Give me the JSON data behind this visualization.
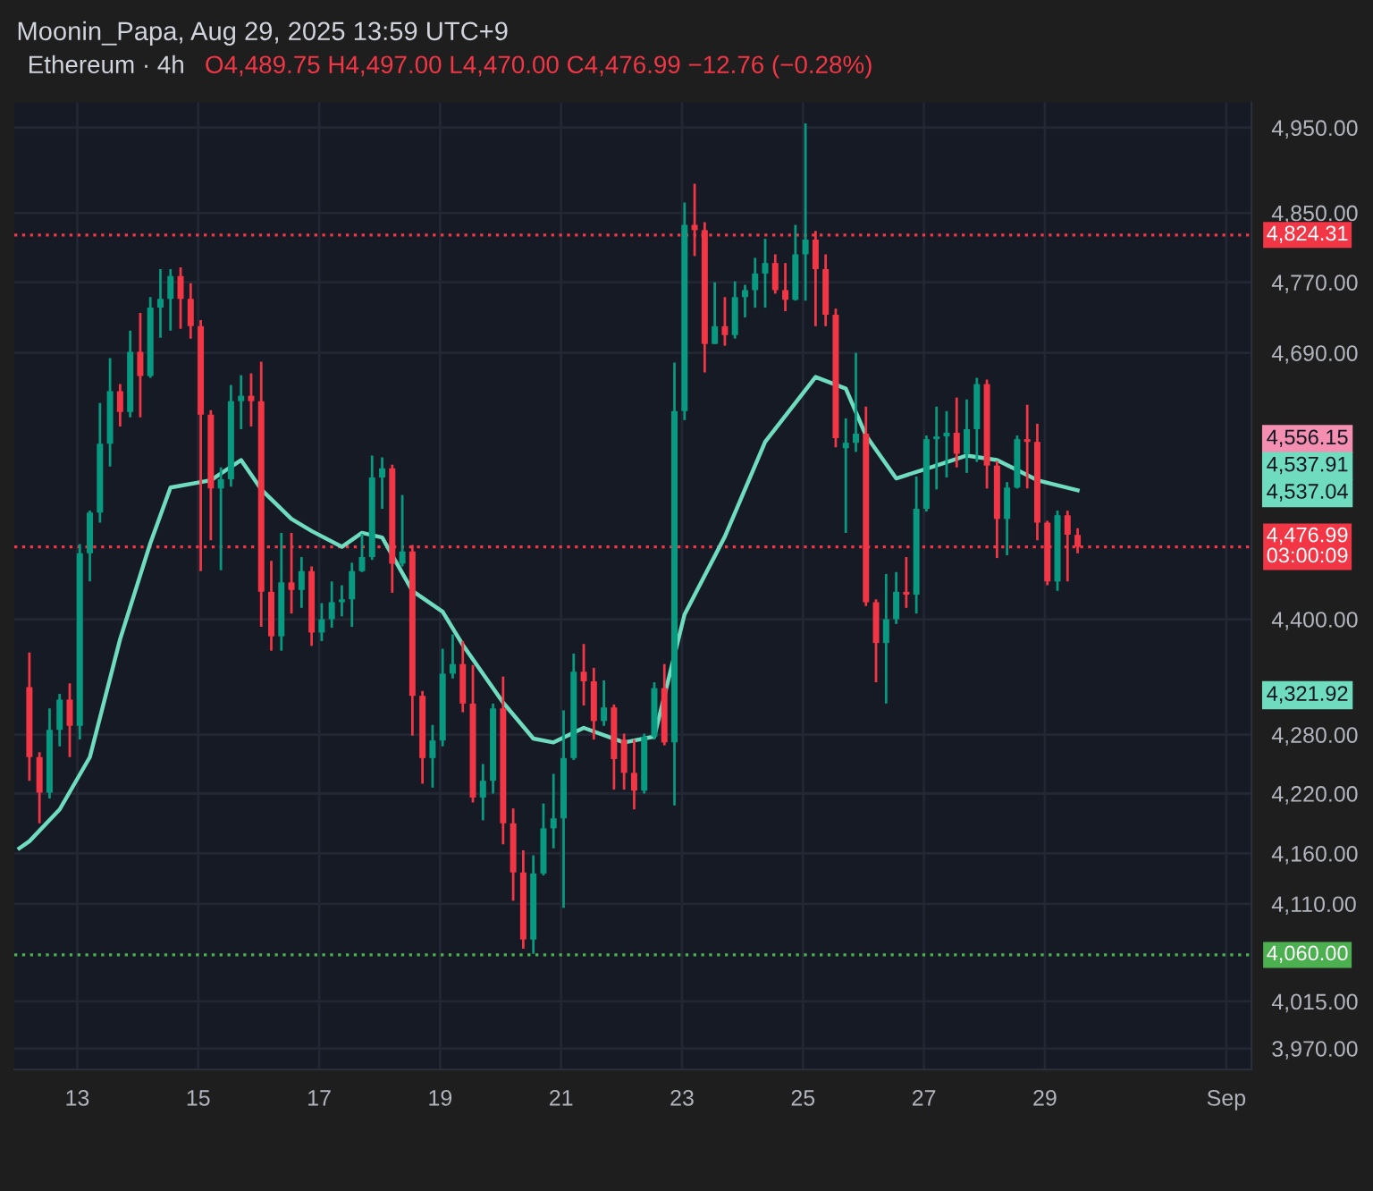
{
  "chart_data": {
    "type": "candlestick",
    "title": "Ethereum · 4h",
    "subtitle": "O4,489.75 H4,497.00 L4,470.00 C4,476.99 −12.76 (−0.28%)",
    "annotations": [
      "Moonin_Papa, Aug 29, 2025 13:59 UTC+9",
      "4,556.15",
      "4,537.91",
      "4,537.04",
      "4,321.92"
    ],
    "x": [
      "2025-08-12T05:00",
      "2025-08-12T09:00",
      "2025-08-12T13:00",
      "2025-08-12T17:00",
      "2025-08-12T21:00",
      "2025-08-13T01:00",
      "2025-08-13T05:00",
      "2025-08-13T09:00",
      "2025-08-13T13:00",
      "2025-08-13T17:00",
      "2025-08-13T21:00",
      "2025-08-14T01:00",
      "2025-08-14T05:00",
      "2025-08-14T09:00",
      "2025-08-14T13:00",
      "2025-08-14T17:00",
      "2025-08-14T21:00",
      "2025-08-15T01:00",
      "2025-08-15T05:00",
      "2025-08-15T09:00",
      "2025-08-15T13:00",
      "2025-08-15T17:00",
      "2025-08-15T21:00",
      "2025-08-16T01:00",
      "2025-08-16T05:00",
      "2025-08-16T09:00",
      "2025-08-16T13:00",
      "2025-08-16T17:00",
      "2025-08-16T21:00",
      "2025-08-17T01:00",
      "2025-08-17T05:00",
      "2025-08-17T09:00",
      "2025-08-17T13:00",
      "2025-08-17T17:00",
      "2025-08-17T21:00",
      "2025-08-18T01:00",
      "2025-08-18T05:00",
      "2025-08-18T09:00",
      "2025-08-18T13:00",
      "2025-08-18T17:00",
      "2025-08-18T21:00",
      "2025-08-19T01:00",
      "2025-08-19T05:00",
      "2025-08-19T09:00",
      "2025-08-19T13:00",
      "2025-08-19T17:00",
      "2025-08-19T21:00",
      "2025-08-20T01:00",
      "2025-08-20T05:00",
      "2025-08-20T09:00",
      "2025-08-20T13:00",
      "2025-08-20T17:00",
      "2025-08-20T21:00",
      "2025-08-21T01:00",
      "2025-08-21T05:00",
      "2025-08-21T09:00",
      "2025-08-21T13:00",
      "2025-08-21T17:00",
      "2025-08-21T21:00",
      "2025-08-22T01:00",
      "2025-08-22T05:00",
      "2025-08-22T09:00",
      "2025-08-22T13:00",
      "2025-08-22T17:00",
      "2025-08-22T21:00",
      "2025-08-23T01:00",
      "2025-08-23T05:00",
      "2025-08-23T09:00",
      "2025-08-23T13:00",
      "2025-08-23T17:00",
      "2025-08-23T21:00",
      "2025-08-24T01:00",
      "2025-08-24T05:00",
      "2025-08-24T09:00",
      "2025-08-24T13:00",
      "2025-08-24T17:00",
      "2025-08-24T21:00",
      "2025-08-25T01:00",
      "2025-08-25T05:00",
      "2025-08-25T09:00",
      "2025-08-25T13:00",
      "2025-08-25T17:00",
      "2025-08-25T21:00",
      "2025-08-26T01:00",
      "2025-08-26T05:00",
      "2025-08-26T09:00",
      "2025-08-26T13:00",
      "2025-08-26T17:00",
      "2025-08-26T21:00",
      "2025-08-27T01:00",
      "2025-08-27T05:00",
      "2025-08-27T09:00",
      "2025-08-27T13:00",
      "2025-08-27T17:00",
      "2025-08-27T21:00",
      "2025-08-28T01:00",
      "2025-08-28T05:00",
      "2025-08-28T09:00",
      "2025-08-28T13:00",
      "2025-08-28T17:00",
      "2025-08-28T21:00",
      "2025-08-29T01:00",
      "2025-08-29T05:00",
      "2025-08-29T09:00",
      "2025-08-29T13:00"
    ],
    "ohlc": [
      [
        4329,
        4365,
        4233,
        4257
      ],
      [
        4257,
        4262,
        4190,
        4221
      ],
      [
        4221,
        4307,
        4215,
        4285
      ],
      [
        4285,
        4322,
        4268,
        4316
      ],
      [
        4316,
        4333,
        4257,
        4289
      ],
      [
        4289,
        4480,
        4275,
        4470
      ],
      [
        4470,
        4516,
        4440,
        4514
      ],
      [
        4514,
        4634,
        4503,
        4589
      ],
      [
        4589,
        4684,
        4564,
        4647
      ],
      [
        4647,
        4655,
        4608,
        4624
      ],
      [
        4624,
        4715,
        4618,
        4691
      ],
      [
        4691,
        4735,
        4618,
        4664
      ],
      [
        4664,
        4753,
        4662,
        4741
      ],
      [
        4741,
        4785,
        4707,
        4751
      ],
      [
        4751,
        4785,
        4715,
        4777
      ],
      [
        4777,
        4787,
        4717,
        4751
      ],
      [
        4751,
        4769,
        4706,
        4720
      ],
      [
        4720,
        4727,
        4451,
        4621
      ],
      [
        4621,
        4626,
        4484,
        4540
      ],
      [
        4540,
        4563,
        4452,
        4550
      ],
      [
        4550,
        4654,
        4542,
        4636
      ],
      [
        4636,
        4665,
        4605,
        4642
      ],
      [
        4642,
        4667,
        4608,
        4636
      ],
      [
        4636,
        4680,
        4392,
        4429
      ],
      [
        4429,
        4462,
        4367,
        4382
      ],
      [
        4382,
        4492,
        4367,
        4439
      ],
      [
        4439,
        4492,
        4406,
        4431
      ],
      [
        4431,
        4466,
        4412,
        4451
      ],
      [
        4451,
        4456,
        4372,
        4386
      ],
      [
        4386,
        4417,
        4377,
        4400
      ],
      [
        4400,
        4440,
        4391,
        4418
      ],
      [
        4418,
        4436,
        4403,
        4421
      ],
      [
        4421,
        4460,
        4392,
        4451
      ],
      [
        4451,
        4491,
        4450,
        4466
      ],
      [
        4466,
        4576,
        4463,
        4552
      ],
      [
        4552,
        4574,
        4518,
        4562
      ],
      [
        4562,
        4566,
        4428,
        4459
      ],
      [
        4459,
        4533,
        4456,
        4472
      ],
      [
        4472,
        4479,
        4279,
        4320
      ],
      [
        4320,
        4325,
        4230,
        4256
      ],
      [
        4256,
        4290,
        4226,
        4274
      ],
      [
        4274,
        4369,
        4268,
        4343
      ],
      [
        4343,
        4384,
        4338,
        4353
      ],
      [
        4353,
        4377,
        4303,
        4312
      ],
      [
        4312,
        4352,
        4211,
        4216
      ],
      [
        4216,
        4250,
        4193,
        4233
      ],
      [
        4233,
        4312,
        4220,
        4307
      ],
      [
        4307,
        4340,
        4169,
        4190
      ],
      [
        4190,
        4205,
        4113,
        4141
      ],
      [
        4141,
        4163,
        4066,
        4075
      ],
      [
        4075,
        4158,
        4061,
        4140
      ],
      [
        4140,
        4210,
        4138,
        4185
      ],
      [
        4185,
        4240,
        4165,
        4195
      ],
      [
        4195,
        4305,
        4106,
        4256
      ],
      [
        4256,
        4364,
        4254,
        4345
      ],
      [
        4345,
        4374,
        4310,
        4335
      ],
      [
        4335,
        4349,
        4275,
        4294
      ],
      [
        4294,
        4336,
        4289,
        4308
      ],
      [
        4308,
        4311,
        4224,
        4255
      ],
      [
        4275,
        4281,
        4224,
        4241
      ],
      [
        4241,
        4275,
        4204,
        4223
      ],
      [
        4223,
        4281,
        4220,
        4278
      ],
      [
        4278,
        4334,
        4275,
        4328
      ],
      [
        4328,
        4353,
        4269,
        4272
      ],
      [
        4272,
        4679,
        4208,
        4625
      ],
      [
        4625,
        4862,
        4615,
        4836
      ],
      [
        4836,
        4884,
        4800,
        4830
      ],
      [
        4830,
        4839,
        4668,
        4700
      ],
      [
        4700,
        4770,
        4700,
        4720
      ],
      [
        4720,
        4753,
        4698,
        4710
      ],
      [
        4710,
        4771,
        4706,
        4753
      ],
      [
        4753,
        4767,
        4730,
        4761
      ],
      [
        4761,
        4798,
        4741,
        4780
      ],
      [
        4780,
        4820,
        4741,
        4792
      ],
      [
        4792,
        4802,
        4757,
        4761
      ],
      [
        4761,
        4792,
        4737,
        4750
      ],
      [
        4750,
        4836,
        4749,
        4802
      ],
      [
        4802,
        4955,
        4749,
        4819
      ],
      [
        4819,
        4829,
        4720,
        4785
      ],
      [
        4785,
        4802,
        4720,
        4733
      ],
      [
        4733,
        4740,
        4585,
        4595
      ],
      [
        4584,
        4617,
        4492,
        4590
      ],
      [
        4590,
        4690,
        4580,
        4600
      ],
      [
        4600,
        4630,
        4414,
        4418
      ],
      [
        4418,
        4421,
        4334,
        4375
      ],
      [
        4375,
        4448,
        4312,
        4400
      ],
      [
        4400,
        4450,
        4395,
        4429
      ],
      [
        4429,
        4466,
        4412,
        4426
      ],
      [
        4426,
        4553,
        4406,
        4518
      ],
      [
        4518,
        4598,
        4515,
        4594
      ],
      [
        4594,
        4630,
        4539,
        4597
      ],
      [
        4597,
        4625,
        4552,
        4601
      ],
      [
        4601,
        4640,
        4563,
        4578
      ],
      [
        4578,
        4638,
        4557,
        4605
      ],
      [
        4605,
        4662,
        4569,
        4655
      ],
      [
        4655,
        4660,
        4540,
        4565
      ],
      [
        4565,
        4570,
        4465,
        4507
      ],
      [
        4507,
        4547,
        4468,
        4541
      ],
      [
        4541,
        4598,
        4540,
        4594
      ],
      [
        4594,
        4632,
        4540,
        4591
      ],
      [
        4591,
        4611,
        4484,
        4503
      ],
      [
        4503,
        4505,
        4436,
        4440
      ],
      [
        4440,
        4516,
        4430,
        4511
      ],
      [
        4511,
        4516,
        4440,
        4490
      ],
      [
        4489.75,
        4497,
        4470,
        4476.99
      ]
    ],
    "series": [
      {
        "type": "line",
        "color": "#6fdcbf",
        "x": [
          "2025-08-12T01:00",
          "2025-08-12T05:00",
          "2025-08-12T17:00",
          "2025-08-13T05:00",
          "2025-08-13T17:00",
          "2025-08-14T05:00",
          "2025-08-14T13:00",
          "2025-08-15T05:00",
          "2025-08-15T17:00",
          "2025-08-16T01:00",
          "2025-08-16T13:00",
          "2025-08-16T21:00",
          "2025-08-17T09:00",
          "2025-08-17T17:00",
          "2025-08-18T01:00",
          "2025-08-18T13:00",
          "2025-08-19T01:00",
          "2025-08-19T09:00",
          "2025-08-20T01:00",
          "2025-08-20T13:00",
          "2025-08-20T21:00",
          "2025-08-21T09:00",
          "2025-08-22T01:00",
          "2025-08-22T13:00",
          "2025-08-23T01:00",
          "2025-08-23T17:00",
          "2025-08-24T09:00",
          "2025-08-25T05:00",
          "2025-08-25T17:00",
          "2025-08-26T01:00",
          "2025-08-26T13:00",
          "2025-08-27T05:00",
          "2025-08-27T17:00",
          "2025-08-28T05:00",
          "2025-08-28T21:00",
          "2025-08-29T13:00"
        ],
        "values": [
          4165,
          4172,
          4204,
          4257,
          4379,
          4481,
          4541,
          4549,
          4571,
          4539,
          4507,
          4494,
          4477,
          4492,
          4487,
          4430,
          4408,
          4373,
          4313,
          4276,
          4272,
          4287,
          4272,
          4278,
          4405,
          4488,
          4591,
          4663,
          4650,
          4598,
          4551,
          4565,
          4576,
          4571,
          4549,
          4538
        ]
      }
    ],
    "ref_lines": [
      {
        "axis": "y",
        "value": 4824.31,
        "label": "4,824.31",
        "color": "#f23645",
        "line_style": "dotted"
      },
      {
        "axis": "y",
        "value": 4476.99,
        "label": "4,476.99\n03:00:09",
        "color": "#f23645",
        "line_style": "dotted"
      },
      {
        "axis": "y",
        "value": 4060,
        "label": "4,060.00",
        "color": "#4caf50",
        "line_style": "dotted"
      }
    ],
    "log": true,
    "ylim": [
      3950,
      4980
    ],
    "yticks": [
      {
        "value": 3970,
        "label": "3,970.00"
      },
      {
        "value": 4015,
        "label": "4,015.00"
      },
      {
        "value": 4110,
        "label": "4,110.00"
      },
      {
        "value": 4160,
        "label": "4,160.00"
      },
      {
        "value": 4220,
        "label": "4,220.00"
      },
      {
        "value": 4280,
        "label": "4,280.00"
      },
      {
        "value": 4400,
        "label": "4,400.00"
      },
      {
        "value": 4690,
        "label": "4,690.00"
      },
      {
        "value": 4770,
        "label": "4,770.00"
      },
      {
        "value": 4850,
        "label": "4,850.00"
      },
      {
        "value": 4950,
        "label": "4,950.00"
      }
    ],
    "xlim": [
      "2025-08-11T23:00",
      "2025-09-01T10:00"
    ],
    "xticks": [
      {
        "value": "2025-08-13",
        "label": "13"
      },
      {
        "value": "2025-08-15",
        "label": "15"
      },
      {
        "value": "2025-08-17",
        "label": "17"
      },
      {
        "value": "2025-08-19",
        "label": "19"
      },
      {
        "value": "2025-08-21",
        "label": "21"
      },
      {
        "value": "2025-08-23",
        "label": "23"
      },
      {
        "value": "2025-08-25",
        "label": "25"
      },
      {
        "value": "2025-08-27",
        "label": "27"
      },
      {
        "value": "2025-08-29",
        "label": "29"
      },
      {
        "value": "2025-09-01",
        "label": "Sep"
      }
    ],
    "grid": true,
    "legend": false
  }
}
